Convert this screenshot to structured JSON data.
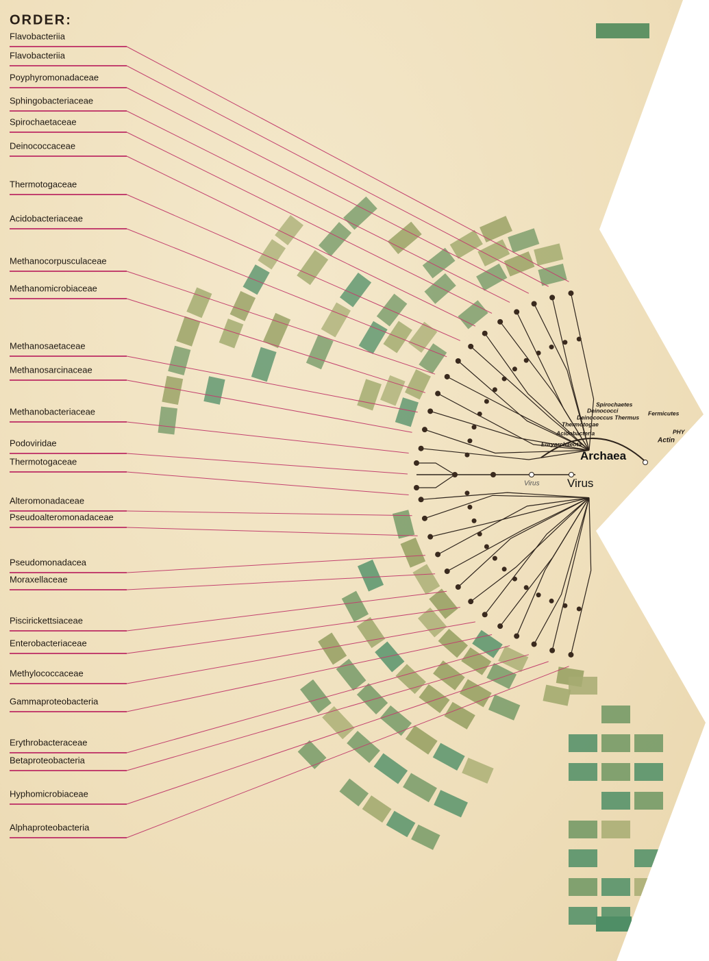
{
  "header": {
    "title": "ORDER:"
  },
  "orders": [
    "Flavobacteriia",
    "Flavobacteriia",
    "Poyphyromonadaceae",
    "Sphingobacteriaceae",
    "Spirochaetaceae",
    "Deinococcaceae",
    "Thermotogaceae",
    "Acidobacteriaceae",
    "Methanocorpusculaceae",
    "Methanomicrobiaceae",
    "Methanosaetaceae",
    "Methanosarcinaceae",
    "Methanobacteriaceae",
    "Podoviridae",
    "Thermotogaceae",
    "Alteromonadaceae",
    "Pseudoalteromonadaceae",
    "Pseudomonadacea",
    "Moraxellaceae",
    "Piscirickettsiaceae",
    "Enterobacteriaceae",
    "Methylococcaceae",
    "Gammaproteobacteria",
    "Erythrobacteraceae",
    "Betaproteobacteria",
    "Hyphomicrobiaceae",
    "Alphaproteobacteria"
  ],
  "tree": {
    "main": [
      "Archaea",
      "Virus"
    ],
    "small": [
      "Virus",
      "Euryarchaeota",
      "Acidobacteria",
      "Thermotogae",
      "Deinococcus Thermus",
      "Deinococci",
      "Spirochaetes",
      "Fermicutes",
      "PHY",
      "Actin"
    ]
  }
}
